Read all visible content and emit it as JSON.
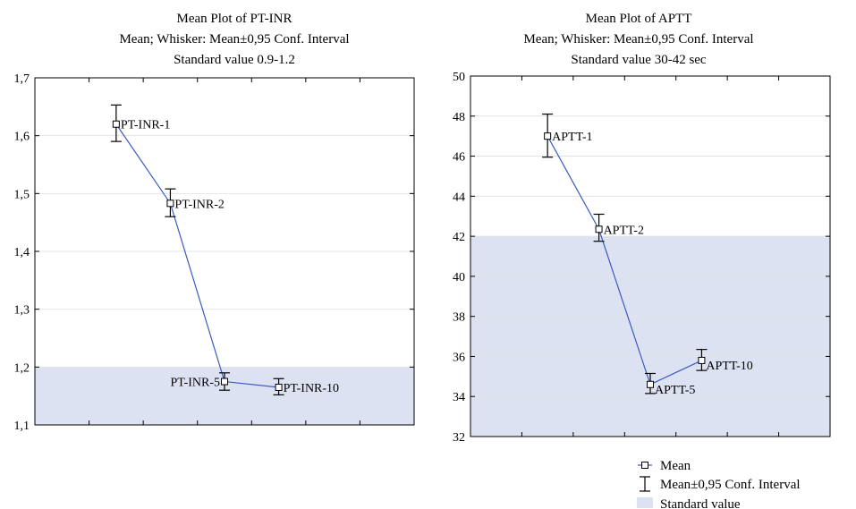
{
  "chart_data": [
    {
      "type": "line",
      "title": "Mean Plot of PT-INR",
      "subtitle": "Mean; Whisker: Mean±0,95 Conf. Interval",
      "subtitle2": "Standard value 0.9-1.2",
      "ylim": [
        1.1,
        1.7
      ],
      "yticks": [
        "1,1",
        "1,2",
        "1,3",
        "1,4",
        "1,5",
        "1,6",
        "1,7"
      ],
      "ytick_values": [
        1.1,
        1.2,
        1.3,
        1.4,
        1.5,
        1.6,
        1.7
      ],
      "standard_band": [
        1.1,
        1.2
      ],
      "grid": true,
      "points": [
        {
          "label": "PT-INR-1",
          "mean": 1.62,
          "lower": 1.59,
          "upper": 1.653
        },
        {
          "label": "PT-INR-2",
          "mean": 1.483,
          "lower": 1.46,
          "upper": 1.508
        },
        {
          "label": "PT-INR-5",
          "mean": 1.175,
          "lower": 1.16,
          "upper": 1.19
        },
        {
          "label": "PT-INR-10",
          "mean": 1.165,
          "lower": 1.152,
          "upper": 1.18
        }
      ]
    },
    {
      "type": "line",
      "title": "Mean Plot of APTT",
      "subtitle": "Mean; Whisker: Mean±0,95 Conf. Interval",
      "subtitle2": "Standard value 30-42 sec",
      "ylim": [
        32,
        50
      ],
      "yticks": [
        "32",
        "34",
        "36",
        "38",
        "40",
        "42",
        "44",
        "46",
        "48",
        "50"
      ],
      "ytick_values": [
        32,
        34,
        36,
        38,
        40,
        42,
        44,
        46,
        48,
        50
      ],
      "standard_band": [
        32,
        42
      ],
      "grid": true,
      "points": [
        {
          "label": "APTT-1",
          "mean": 47.0,
          "lower": 45.95,
          "upper": 48.1
        },
        {
          "label": "APTT-2",
          "mean": 42.35,
          "lower": 41.75,
          "upper": 43.1
        },
        {
          "label": "APTT-5",
          "mean": 34.6,
          "lower": 34.15,
          "upper": 35.15
        },
        {
          "label": "APTT-10",
          "mean": 35.8,
          "lower": 35.3,
          "upper": 36.35
        }
      ]
    }
  ],
  "legend": {
    "mean_label": "Mean",
    "ci_label": "Mean±0,95 Conf. Interval",
    "band_label": "Standard value"
  },
  "colors": {
    "line": "#3b5bbf",
    "band": "#dce2f2",
    "axis": "#000000",
    "grid": "#e4e4e4"
  }
}
